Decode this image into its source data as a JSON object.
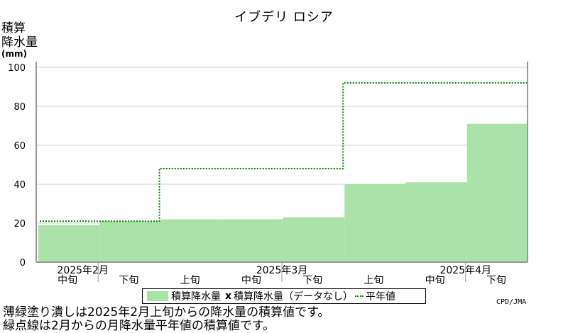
{
  "title": "イブデリ ロシア",
  "y_axis_label_line1": "積算",
  "y_axis_label_line2": "降水量",
  "y_axis_unit": "(mm)",
  "legend": {
    "fill_label": "積算降水量",
    "x_mark": "x",
    "nodata_label": "積算降水量（データなし）",
    "normal_label": "平年値"
  },
  "credit": "CPD/JMA",
  "footnote_line1": "薄緑塗り潰しは2025年2月上旬からの降水量の積算値です。",
  "footnote_line2": "緑点線は2月からの月降水量平年値の積算値です。",
  "colors": {
    "fill": "#aae2a8",
    "normal_line": "#008800",
    "grid": "#d0d0d0",
    "axis": "#999999"
  },
  "chart_data": {
    "type": "area",
    "periods": [
      "2月中旬",
      "2月下旬",
      "3月上旬",
      "3月中旬",
      "3月下旬",
      "4月上旬",
      "4月中旬",
      "4月下旬"
    ],
    "x_tick_labels": [
      "中旬",
      "下旬",
      "上旬",
      "中旬",
      "下旬",
      "上旬",
      "中旬",
      "下旬"
    ],
    "month_labels": [
      "2025年2月",
      "2025年3月",
      "2025年4月"
    ],
    "series": [
      {
        "name": "積算降水量",
        "values": [
          19,
          21,
          22,
          22,
          23,
          40,
          41,
          71
        ]
      },
      {
        "name": "平年値",
        "values": [
          21,
          21,
          48,
          48,
          48,
          92,
          92,
          92
        ]
      }
    ],
    "ylim": [
      0,
      100
    ],
    "yticks": [
      0,
      20,
      40,
      60,
      80,
      100
    ],
    "grid": true,
    "legend_position": "bottom"
  }
}
